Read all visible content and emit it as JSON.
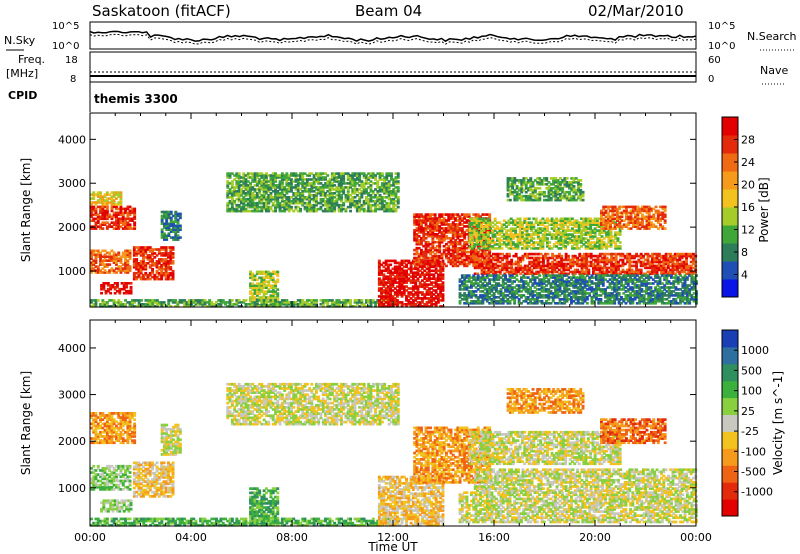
{
  "header": {
    "station": "Saskatoon (fitACF)",
    "beam": "Beam 04",
    "date": "02/Mar/2010"
  },
  "summary_panels": {
    "nsky": {
      "left_label": "N.Sky",
      "left_ticks": [
        "10^5",
        "10^0"
      ],
      "right_ticks": [
        "10^5",
        "10^0"
      ],
      "right_label": "N.Search"
    },
    "freq": {
      "left_label_1": "Freq.",
      "left_label_2": "[MHz]",
      "left_ticks": [
        "18",
        "8"
      ],
      "right_ticks": [
        "60",
        "0"
      ],
      "right_label": "Nave"
    },
    "cpid": {
      "label": "CPID",
      "mode": "themis 3300"
    }
  },
  "chart_data": [
    {
      "type": "heatmap",
      "parameter": "Power",
      "ylabel": "Slant Range [km]",
      "yticks": [
        1000,
        2000,
        3000,
        4000
      ],
      "ylim": [
        180,
        4600
      ],
      "xlim_hours": [
        0,
        24
      ],
      "colorbar": {
        "label": "Power [dB]",
        "ticks": [
          "4",
          "8",
          "12",
          "16",
          "20",
          "24",
          "28"
        ],
        "colors": [
          "#0a14e6",
          "#1f4fb4",
          "#2d7d5a",
          "#3fa63a",
          "#a6cc2a",
          "#f2c21f",
          "#f59a1a",
          "#f06a14",
          "#e32a0a",
          "#e30000"
        ]
      },
      "patches": [
        {
          "t0": 0.0,
          "t1": 1.8,
          "r0": 1950,
          "r1": 2450,
          "level": 8
        },
        {
          "t0": 0.0,
          "t1": 1.6,
          "r0": 950,
          "r1": 1450,
          "level": 7
        },
        {
          "t0": 1.7,
          "t1": 3.3,
          "r0": 800,
          "r1": 1550,
          "level": 8
        },
        {
          "t0": 0.4,
          "t1": 1.6,
          "r0": 480,
          "r1": 720,
          "level": 9
        },
        {
          "t0": 0.0,
          "t1": 1.2,
          "r0": 2500,
          "r1": 2800,
          "level": 5
        },
        {
          "t0": 2.8,
          "t1": 3.6,
          "r0": 1700,
          "r1": 2350,
          "level": 2
        },
        {
          "t0": 5.4,
          "t1": 12.2,
          "r0": 2350,
          "r1": 3250,
          "level": 3
        },
        {
          "t0": 6.3,
          "t1": 7.4,
          "r0": 200,
          "r1": 1000,
          "level": 4
        },
        {
          "t0": 0.0,
          "t1": 12.2,
          "r0": 180,
          "r1": 330,
          "level": 3
        },
        {
          "t0": 11.4,
          "t1": 14.0,
          "r0": 180,
          "r1": 1250,
          "level": 9
        },
        {
          "t0": 12.8,
          "t1": 15.8,
          "r0": 1100,
          "r1": 2300,
          "level": 8
        },
        {
          "t0": 15.2,
          "t1": 24.0,
          "r0": 920,
          "r1": 1380,
          "level": 8
        },
        {
          "t0": 14.6,
          "t1": 24.0,
          "r0": 250,
          "r1": 900,
          "level": 2
        },
        {
          "t0": 15.0,
          "t1": 21.0,
          "r0": 1500,
          "r1": 2200,
          "level": 4
        },
        {
          "t0": 20.2,
          "t1": 22.8,
          "r0": 1950,
          "r1": 2450,
          "level": 7
        },
        {
          "t0": 16.5,
          "t1": 19.5,
          "r0": 2600,
          "r1": 3100,
          "level": 3
        }
      ]
    },
    {
      "type": "heatmap",
      "parameter": "Velocity",
      "ylabel": "Slant Range [km]",
      "yticks": [
        1000,
        2000,
        3000,
        4000
      ],
      "ylim": [
        180,
        4600
      ],
      "xlim_hours": [
        0,
        24
      ],
      "xticks": [
        "00:00",
        "04:00",
        "08:00",
        "12:00",
        "16:00",
        "20:00",
        "00:00"
      ],
      "xlabel": "Time UT",
      "colorbar": {
        "label": "Velocity [m s^-1]",
        "ticks": [
          "1000",
          "500",
          "100",
          "25",
          "-25",
          "-100",
          "-500",
          "-1000"
        ],
        "colors": [
          "#1a3fb5",
          "#2e6fa0",
          "#2f8f5f",
          "#3cb03c",
          "#88d040",
          "#c8c8c0",
          "#f2c21f",
          "#f59a1a",
          "#ef6414",
          "#e32a0a",
          "#e30000"
        ]
      },
      "patches": [
        {
          "t0": 0.0,
          "t1": 1.8,
          "r0": 1950,
          "r1": 2600,
          "level": 7
        },
        {
          "t0": 0.0,
          "t1": 1.6,
          "r0": 950,
          "r1": 1450,
          "level": 4
        },
        {
          "t0": 1.7,
          "t1": 3.3,
          "r0": 800,
          "r1": 1550,
          "level": 6
        },
        {
          "t0": 0.4,
          "t1": 1.6,
          "r0": 480,
          "r1": 720,
          "level": 4
        },
        {
          "t0": 2.8,
          "t1": 3.6,
          "r0": 1700,
          "r1": 2350,
          "level": 5
        },
        {
          "t0": 5.4,
          "t1": 12.2,
          "r0": 2350,
          "r1": 3250,
          "level": 5
        },
        {
          "t0": 6.3,
          "t1": 7.4,
          "r0": 200,
          "r1": 1000,
          "level": 3
        },
        {
          "t0": 0.0,
          "t1": 12.2,
          "r0": 180,
          "r1": 330,
          "level": 3
        },
        {
          "t0": 11.4,
          "t1": 14.0,
          "r0": 180,
          "r1": 1250,
          "level": 6
        },
        {
          "t0": 12.8,
          "t1": 15.8,
          "r0": 1100,
          "r1": 2300,
          "level": 7
        },
        {
          "t0": 15.2,
          "t1": 24.0,
          "r0": 920,
          "r1": 1380,
          "level": 5
        },
        {
          "t0": 14.6,
          "t1": 24.0,
          "r0": 250,
          "r1": 900,
          "level": 5
        },
        {
          "t0": 15.0,
          "t1": 21.0,
          "r0": 1500,
          "r1": 2200,
          "level": 5
        },
        {
          "t0": 20.2,
          "t1": 22.8,
          "r0": 1950,
          "r1": 2450,
          "level": 8
        },
        {
          "t0": 16.5,
          "t1": 19.5,
          "r0": 2600,
          "r1": 3100,
          "level": 7
        }
      ]
    }
  ]
}
